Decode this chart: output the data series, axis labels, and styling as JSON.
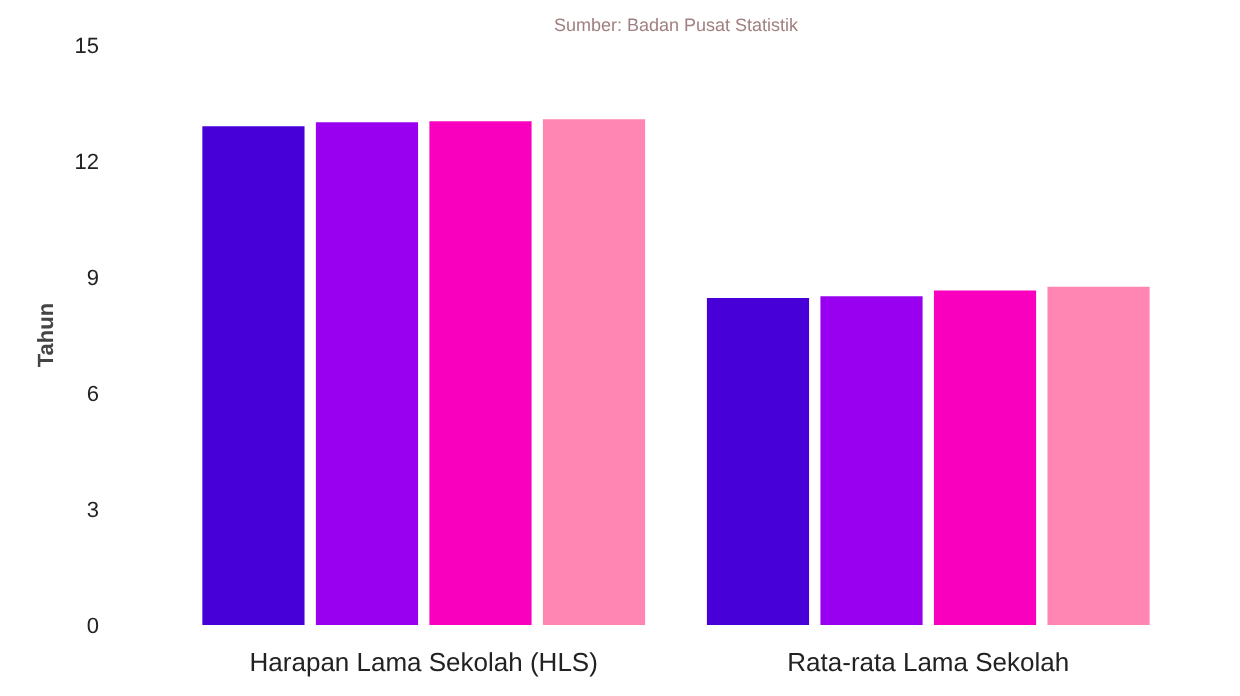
{
  "chart_data": {
    "type": "bar",
    "annotations": [
      "Sumber: Badan Pusat Statistik"
    ],
    "ylabel": "Tahun",
    "categories": [
      "Harapan Lama Sekolah (HLS)",
      "Rata-rata Lama Sekolah"
    ],
    "series": [
      {
        "color": "#4700d8",
        "values": [
          12.9,
          8.46
        ]
      },
      {
        "color": "#9900f0",
        "values": [
          13.0,
          8.5
        ]
      },
      {
        "color": "#f900bf",
        "values": [
          13.03,
          8.65
        ]
      },
      {
        "color": "#ff85b3",
        "values": [
          13.08,
          8.75
        ]
      }
    ],
    "ylim": [
      0,
      15
    ],
    "yticks": [
      0,
      3,
      6,
      9,
      12,
      15
    ],
    "grid": false
  }
}
